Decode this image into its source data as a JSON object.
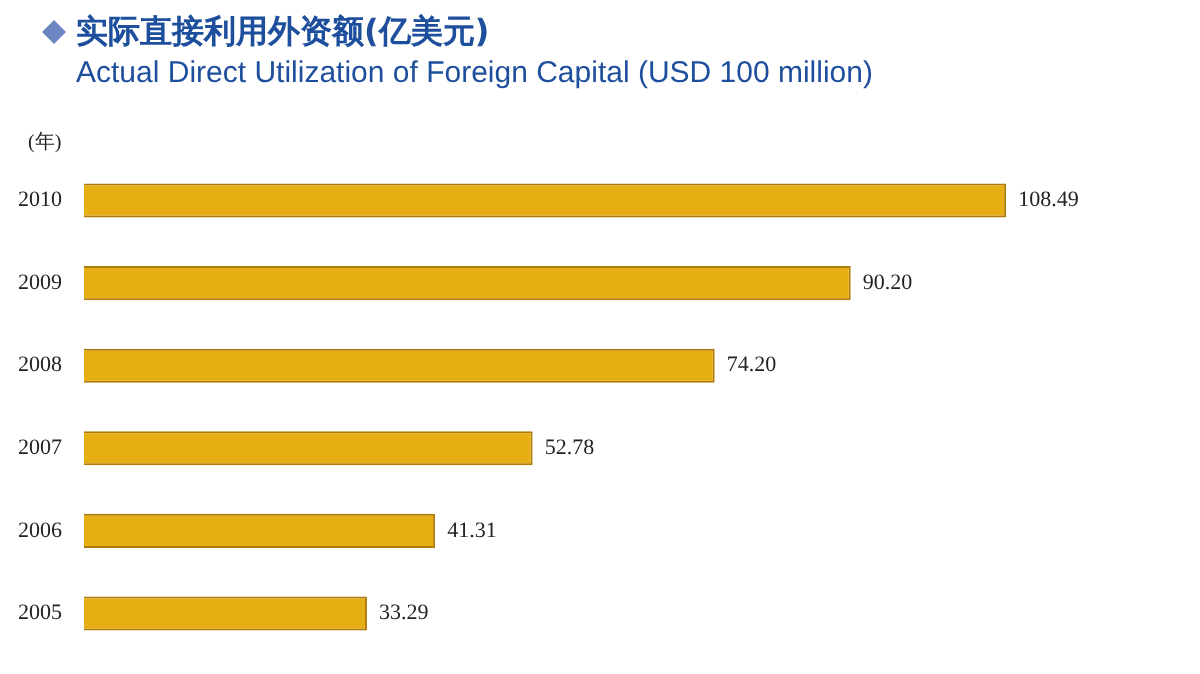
{
  "chart_data": {
    "type": "bar",
    "orientation": "horizontal",
    "title": "实际直接利用外资额(亿美元)",
    "subtitle": "Actual Direct Utilization of Foreign Capital (USD 100 million)",
    "ylabel": "(年)",
    "categories": [
      "2010",
      "2009",
      "2008",
      "2007",
      "2006",
      "2005"
    ],
    "values": [
      108.49,
      90.2,
      74.2,
      52.78,
      41.31,
      33.29
    ],
    "value_labels": [
      "108.49",
      "90.20",
      "74.20",
      "52.78",
      "41.31",
      "33.29"
    ],
    "color": "#e6ae12",
    "legend": false
  }
}
